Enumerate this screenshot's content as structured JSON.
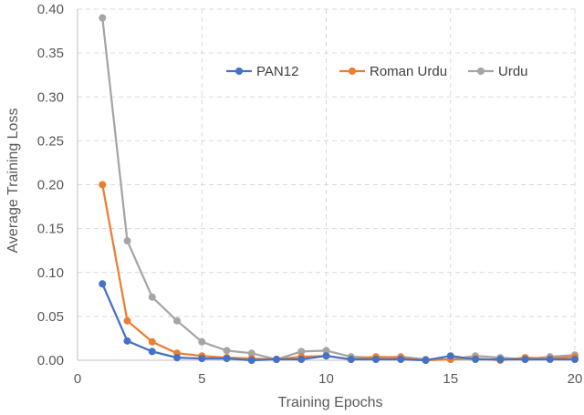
{
  "chart_data": {
    "type": "line",
    "title": "",
    "xlabel": "Training Epochs",
    "ylabel": "Average Training Loss",
    "xlim": [
      0,
      20
    ],
    "ylim": [
      0,
      0.4
    ],
    "x_ticks": [
      "0",
      "5",
      "10",
      "15",
      "20"
    ],
    "y_ticks": [
      "0.00",
      "0.05",
      "0.10",
      "0.15",
      "0.20",
      "0.25",
      "0.30",
      "0.35",
      "0.40"
    ],
    "grid": true,
    "legend_position": "top-right",
    "x": [
      1,
      2,
      3,
      4,
      5,
      6,
      7,
      8,
      9,
      10,
      11,
      12,
      13,
      14,
      15,
      16,
      17,
      18,
      19,
      20
    ],
    "series": [
      {
        "name": "PAN12",
        "color": "#4472c4",
        "values": [
          0.087,
          0.022,
          0.01,
          0.003,
          0.002,
          0.002,
          0.0,
          0.001,
          0.001,
          0.005,
          0.001,
          0.001,
          0.001,
          0.0,
          0.005,
          0.001,
          0.001,
          0.001,
          0.001,
          0.001
        ]
      },
      {
        "name": "Roman Urdu",
        "color": "#ed7d31",
        "values": [
          0.2,
          0.045,
          0.021,
          0.008,
          0.005,
          0.003,
          0.002,
          0.001,
          0.004,
          0.005,
          0.001,
          0.004,
          0.003,
          0.0,
          0.001,
          0.002,
          0.0,
          0.003,
          0.002,
          0.004
        ]
      },
      {
        "name": "Urdu",
        "color": "#a5a5a5",
        "values": [
          0.39,
          0.136,
          0.072,
          0.045,
          0.021,
          0.011,
          0.008,
          0.001,
          0.01,
          0.011,
          0.004,
          0.003,
          0.004,
          0.001,
          0.001,
          0.005,
          0.003,
          0.001,
          0.004,
          0.006
        ]
      }
    ]
  }
}
